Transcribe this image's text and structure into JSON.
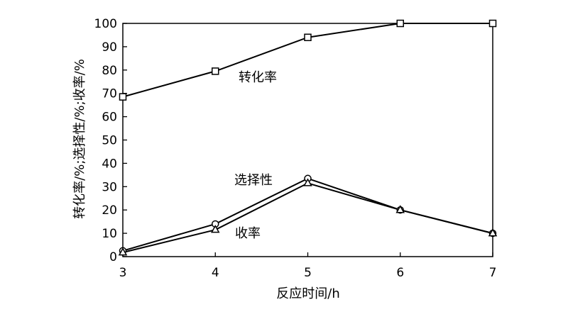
{
  "chart_data": {
    "type": "line",
    "title": "",
    "xlabel": "反应时间/h",
    "ylabel": "转化率/%;选择性/%;收率/%",
    "x": [
      3,
      4,
      5,
      6,
      7
    ],
    "xlim": [
      3,
      7
    ],
    "ylim": [
      0,
      100
    ],
    "x_ticks": [
      "3",
      "4",
      "5",
      "6",
      "7"
    ],
    "y_ticks": [
      "0",
      "10",
      "20",
      "30",
      "40",
      "50",
      "60",
      "70",
      "80",
      "90",
      "100"
    ],
    "grid": false,
    "series": [
      {
        "name": "转化率",
        "marker": "square",
        "values": [
          68.5,
          79.5,
          94,
          100,
          100
        ]
      },
      {
        "name": "选择性",
        "marker": "circle",
        "values": [
          2.5,
          14,
          33.5,
          20,
          10
        ]
      },
      {
        "name": "收率",
        "marker": "triangle",
        "values": [
          1.8,
          11.5,
          31.5,
          20,
          10
        ]
      }
    ],
    "colors": {
      "line": "#000000",
      "marker_fill": "#ffffff"
    }
  }
}
